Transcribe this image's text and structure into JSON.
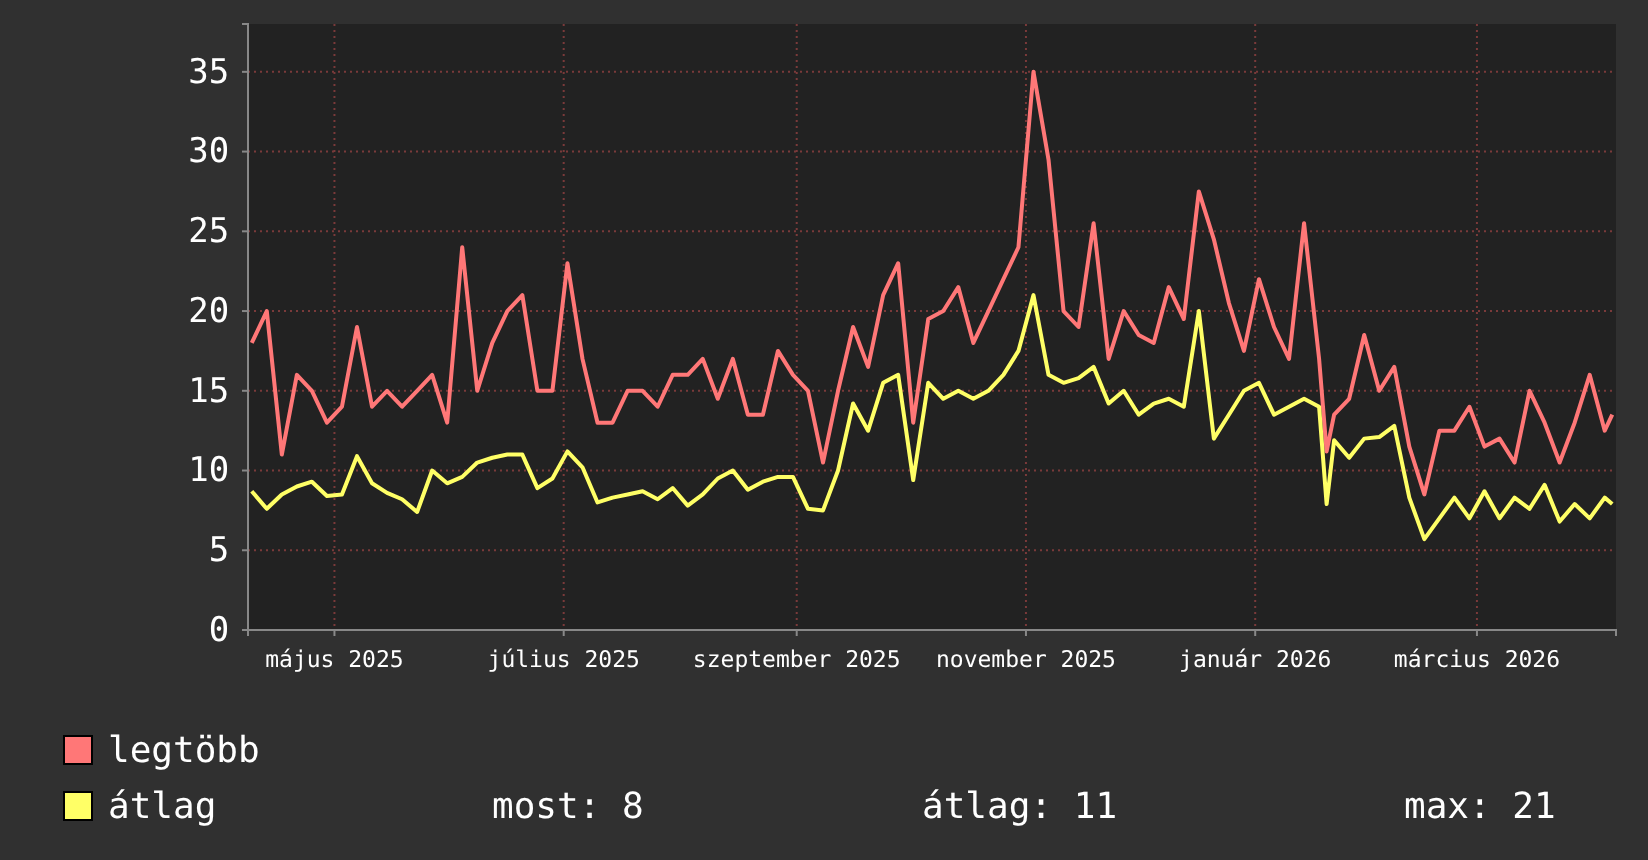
{
  "chart_data": {
    "type": "line",
    "x": [
      "2025-04-09",
      "2025-04-13",
      "2025-04-17",
      "2025-04-21",
      "2025-04-25",
      "2025-04-29",
      "2025-05-03",
      "2025-05-07",
      "2025-05-11",
      "2025-05-15",
      "2025-05-19",
      "2025-05-23",
      "2025-05-27",
      "2025-05-31",
      "2025-06-04",
      "2025-06-08",
      "2025-06-12",
      "2025-06-16",
      "2025-06-20",
      "2025-06-24",
      "2025-06-28",
      "2025-07-02",
      "2025-07-06",
      "2025-07-10",
      "2025-07-14",
      "2025-07-18",
      "2025-07-22",
      "2025-07-26",
      "2025-07-30",
      "2025-08-03",
      "2025-08-07",
      "2025-08-11",
      "2025-08-15",
      "2025-08-19",
      "2025-08-23",
      "2025-08-27",
      "2025-08-31",
      "2025-09-04",
      "2025-09-08",
      "2025-09-12",
      "2025-09-16",
      "2025-09-20",
      "2025-09-24",
      "2025-09-28",
      "2025-10-02",
      "2025-10-06",
      "2025-10-10",
      "2025-10-14",
      "2025-10-18",
      "2025-10-22",
      "2025-10-26",
      "2025-10-30",
      "2025-11-03",
      "2025-11-07",
      "2025-11-11",
      "2025-11-15",
      "2025-11-19",
      "2025-11-23",
      "2025-11-27",
      "2025-12-01",
      "2025-12-05",
      "2025-12-09",
      "2025-12-13",
      "2025-12-17",
      "2025-12-21",
      "2025-12-25",
      "2025-12-29",
      "2026-01-02",
      "2026-01-06",
      "2026-01-10",
      "2026-01-14",
      "2026-01-18",
      "2026-01-20",
      "2026-01-22",
      "2026-01-26",
      "2026-01-30",
      "2026-02-03",
      "2026-02-07",
      "2026-02-11",
      "2026-02-15",
      "2026-02-19",
      "2026-02-23",
      "2026-02-27",
      "2026-03-03",
      "2026-03-07",
      "2026-03-11",
      "2026-03-15",
      "2026-03-19",
      "2026-03-23",
      "2026-03-27",
      "2026-03-31",
      "2026-04-04",
      "2026-04-06"
    ],
    "series": [
      {
        "name": "legtöbb",
        "color": "#ff7777",
        "values": [
          18,
          20,
          11,
          16,
          15,
          13,
          14,
          19,
          14,
          15,
          14,
          15,
          16,
          13,
          24,
          15,
          18,
          20,
          21,
          15,
          15,
          23,
          17,
          13,
          13,
          15,
          15,
          14,
          16,
          16,
          17,
          14.5,
          17,
          13.5,
          13.5,
          17.5,
          16,
          15,
          10.5,
          15,
          19,
          16.5,
          21,
          23,
          13,
          19.5,
          20,
          21.5,
          18,
          20,
          22,
          24,
          35,
          29.5,
          20,
          19,
          25.5,
          17,
          20,
          18.5,
          18,
          21.5,
          19.5,
          27.5,
          24.5,
          20.5,
          17.5,
          22,
          19,
          17,
          25.5,
          17,
          11.2,
          13.5,
          14.5,
          18.5,
          15,
          16.5,
          11.5,
          8.5,
          12.5,
          12.5,
          14,
          11.5,
          12,
          10.5,
          15,
          13,
          10.5,
          13,
          16,
          12.5,
          13.5
        ]
      },
      {
        "name": "átlag",
        "color": "#ffff66",
        "values": [
          8.7,
          7.6,
          8.5,
          9,
          9.3,
          8.4,
          8.5,
          10.9,
          9.2,
          8.6,
          8.2,
          7.4,
          10,
          9.2,
          9.6,
          10.5,
          10.8,
          11,
          11,
          8.9,
          9.5,
          11.2,
          10.2,
          8,
          8.3,
          8.5,
          8.7,
          8.2,
          8.9,
          7.8,
          8.5,
          9.5,
          10,
          8.8,
          9.3,
          9.6,
          9.6,
          7.6,
          7.5,
          10,
          14.2,
          12.5,
          15.5,
          16,
          9.4,
          15.5,
          14.5,
          15,
          14.5,
          15,
          16,
          17.5,
          21,
          16,
          15.5,
          15.8,
          16.5,
          14.2,
          15,
          13.5,
          14.2,
          14.5,
          14,
          20,
          12,
          13.5,
          15,
          15.5,
          13.5,
          14,
          14.5,
          14,
          7.9,
          11.9,
          10.8,
          12,
          12.1,
          12.8,
          8.3,
          5.7,
          7,
          8.3,
          7,
          8.7,
          7,
          8.3,
          7.6,
          9.1,
          6.8,
          7.9,
          7,
          8.3,
          7.9
        ]
      }
    ],
    "xlim": [
      "2025-04-08",
      "2026-04-07"
    ],
    "xticks": [
      {
        "value": "2025-05-01",
        "label": "május 2025"
      },
      {
        "value": "2025-07-01",
        "label": "július 2025"
      },
      {
        "value": "2025-09-01",
        "label": "szeptember 2025"
      },
      {
        "value": "2025-11-01",
        "label": "november 2025"
      },
      {
        "value": "2026-01-01",
        "label": "január 2026"
      },
      {
        "value": "2026-03-01",
        "label": "március 2026"
      }
    ],
    "ylim": [
      0,
      38
    ],
    "yticks": [
      0,
      5,
      10,
      15,
      20,
      25,
      30,
      35
    ],
    "grid": true,
    "legend": "bottom",
    "marker": "none",
    "line_style": "solid",
    "annotations": [
      "most: 8",
      "átlag: 11",
      "max: 21"
    ]
  }
}
